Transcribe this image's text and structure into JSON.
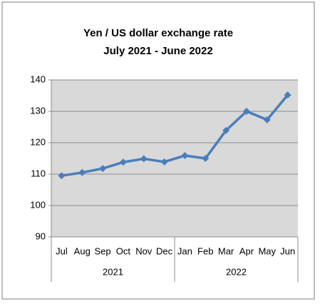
{
  "chart_data": {
    "type": "line",
    "title": "Yen / US dollar exchange rate",
    "subtitle": "July 2021 - June 2022",
    "groups": [
      {
        "label": "2021",
        "categories": [
          "Jul",
          "Aug",
          "Sep",
          "Oct",
          "Nov",
          "Dec"
        ]
      },
      {
        "label": "2022",
        "categories": [
          "Jan",
          "Feb",
          "Mar",
          "Apr",
          "May",
          "Jun"
        ]
      }
    ],
    "values": [
      109.5,
      110.5,
      111.8,
      113.8,
      114.9,
      113.9,
      115.9,
      115,
      123.9,
      130,
      127.3,
      135.2
    ],
    "color": "#4a7ebb",
    "ylim": [
      90,
      140
    ],
    "yticks": [
      90,
      100,
      110,
      120,
      130,
      140
    ],
    "grid": true
  }
}
